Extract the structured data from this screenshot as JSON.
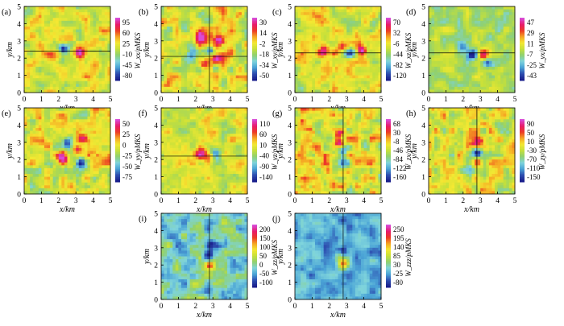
{
  "chart_data": [
    {
      "panel": "(a)",
      "type": "heatmap",
      "xlabel": "x/km",
      "ylabel": "y/km",
      "xlim": [
        0,
        5
      ],
      "ylim": [
        0,
        5
      ],
      "xticks": [
        "0",
        "1",
        "2",
        "3",
        "4",
        "5"
      ],
      "yticks": [
        "0",
        "1",
        "2",
        "3",
        "4",
        "5"
      ],
      "colorbar_ticks": [
        "95",
        "60",
        "25",
        "-10",
        "-45",
        "-80"
      ],
      "colorbar_label": "W_xx/pMKS",
      "crosshair": {
        "h": 2.4
      },
      "blobs": [
        {
          "x": 2.3,
          "y": 2.5,
          "v": -1
        },
        {
          "x": 3.2,
          "y": 2.3,
          "v": 1
        },
        {
          "x": 1.6,
          "y": 2.0,
          "v": 0.4
        },
        {
          "x": 4.2,
          "y": 2.4,
          "v": -0.3
        }
      ]
    },
    {
      "panel": "(b)",
      "type": "heatmap",
      "xlabel": "x/km",
      "ylabel": "y/km",
      "xlim": [
        0,
        5
      ],
      "ylim": [
        0,
        5
      ],
      "xticks": [
        "0",
        "1",
        "2",
        "3",
        "4",
        "5"
      ],
      "yticks": [
        "0",
        "1",
        "2",
        "3",
        "4",
        "5"
      ],
      "colorbar_ticks": [
        "30",
        "14",
        "-2",
        "-18",
        "-34",
        "-50"
      ],
      "colorbar_label": "W_xy/pMKS",
      "crosshair": {
        "h": 2.1,
        "v": 2.8
      },
      "blobs": [
        {
          "x": 2.3,
          "y": 3.2,
          "v": 1
        },
        {
          "x": 3.4,
          "y": 3.0,
          "v": 0.8
        },
        {
          "x": 2.8,
          "y": 2.4,
          "v": -1
        },
        {
          "x": 3.2,
          "y": 2.0,
          "v": 0.9
        },
        {
          "x": 1.8,
          "y": 2.2,
          "v": -0.5
        },
        {
          "x": 2.5,
          "y": 1.6,
          "v": 0.6
        }
      ]
    },
    {
      "panel": "(c)",
      "type": "heatmap",
      "xlabel": "x/km",
      "ylabel": "y/km",
      "xlim": [
        0,
        5
      ],
      "ylim": [
        0,
        5
      ],
      "xticks": [
        "0",
        "1",
        "2",
        "3",
        "4",
        "5"
      ],
      "yticks": [
        "0",
        "1",
        "2",
        "3",
        "4",
        "5"
      ],
      "colorbar_ticks": [
        "70",
        "32",
        "-6",
        "-44",
        "-82",
        "-120"
      ],
      "colorbar_label": "W_xz/pMKS",
      "crosshair": {
        "h": 2.3
      },
      "blobs": [
        {
          "x": 1.7,
          "y": 2.4,
          "v": 1
        },
        {
          "x": 2.3,
          "y": 2.3,
          "v": 0.7
        },
        {
          "x": 3.2,
          "y": 2.3,
          "v": -1
        },
        {
          "x": 3.9,
          "y": 2.4,
          "v": 1
        },
        {
          "x": 2.8,
          "y": 2.6,
          "v": 0.4
        }
      ]
    },
    {
      "panel": "(d)",
      "type": "heatmap",
      "xlabel": "x/km",
      "ylabel": "y/km",
      "xlim": [
        0,
        5
      ],
      "ylim": [
        0,
        5
      ],
      "xticks": [
        "0",
        "1",
        "2",
        "3",
        "4",
        "5"
      ],
      "yticks": [
        "0",
        "1",
        "2",
        "3",
        "4",
        "5"
      ],
      "colorbar_ticks": [
        "47",
        "29",
        "11",
        "-7",
        "-25",
        "-43"
      ],
      "colorbar_label": "W_yx/pMKS",
      "crosshair": {
        "h": 2.3
      },
      "blobs": [
        {
          "x": 2.5,
          "y": 2.2,
          "v": -1
        },
        {
          "x": 3.2,
          "y": 2.2,
          "v": 0.9
        },
        {
          "x": 3.5,
          "y": 1.7,
          "v": -0.8
        },
        {
          "x": 2.0,
          "y": 2.6,
          "v": -0.4
        }
      ]
    },
    {
      "panel": "(e)",
      "type": "heatmap",
      "xlabel": "x/km",
      "ylabel": "y/km",
      "xlim": [
        0,
        5
      ],
      "ylim": [
        0,
        5
      ],
      "xticks": [
        "0",
        "1",
        "2",
        "3",
        "4",
        "5"
      ],
      "yticks": [
        "0",
        "1",
        "2",
        "3",
        "4",
        "5"
      ],
      "colorbar_ticks": [
        "50",
        "25",
        "0",
        "-25",
        "-50",
        "-75"
      ],
      "colorbar_label": "W_yy/pMKS",
      "blobs": [
        {
          "x": 2.2,
          "y": 2.0,
          "v": 1
        },
        {
          "x": 3.1,
          "y": 2.6,
          "v": 0.9
        },
        {
          "x": 3.5,
          "y": 3.2,
          "v": 0.6
        },
        {
          "x": 2.5,
          "y": 2.9,
          "v": -0.8
        },
        {
          "x": 3.3,
          "y": 1.8,
          "v": -0.9
        }
      ]
    },
    {
      "panel": "(f)",
      "type": "heatmap",
      "xlabel": "x/km",
      "ylabel": "y/km",
      "xlim": [
        0,
        5
      ],
      "ylim": [
        0,
        5
      ],
      "xticks": [
        "0",
        "1",
        "2",
        "3",
        "4",
        "5"
      ],
      "yticks": [
        "0",
        "1",
        "2",
        "3",
        "4",
        "5"
      ],
      "colorbar_ticks": [
        "110",
        "60",
        "10",
        "-40",
        "-90",
        "-140"
      ],
      "colorbar_label": "W_yz/pMKS",
      "crosshair": {
        "h": 2.2
      },
      "blobs": [
        {
          "x": 2.3,
          "y": 2.3,
          "v": 1
        },
        {
          "x": 3.2,
          "y": 2.3,
          "v": -1
        },
        {
          "x": 2.8,
          "y": 2.1,
          "v": 0.3
        }
      ]
    },
    {
      "panel": "(g)",
      "type": "heatmap",
      "xlabel": "x/km",
      "ylabel": "y/km",
      "xlim": [
        0,
        5
      ],
      "ylim": [
        0,
        5
      ],
      "xticks": [
        "0",
        "1",
        "2",
        "3",
        "4",
        "5"
      ],
      "yticks": [
        "0",
        "1",
        "2",
        "3",
        "4",
        "5"
      ],
      "colorbar_ticks": [
        "68",
        "30",
        "-8",
        "-46",
        "-84",
        "-122",
        "-160"
      ],
      "colorbar_label": "W_zx/pMKS",
      "crosshair": {
        "v": 2.8
      },
      "blobs": [
        {
          "x": 2.6,
          "y": 3.0,
          "v": 1
        },
        {
          "x": 2.8,
          "y": 2.4,
          "v": -0.7
        },
        {
          "x": 2.8,
          "y": 1.8,
          "v": -1
        },
        {
          "x": 2.5,
          "y": 3.5,
          "v": 0.6
        },
        {
          "x": 2.8,
          "y": 1.2,
          "v": 0.4
        }
      ]
    },
    {
      "panel": "(h)",
      "type": "heatmap",
      "xlabel": "x/km",
      "ylabel": "y/km",
      "xlim": [
        0,
        5
      ],
      "ylim": [
        0,
        5
      ],
      "xticks": [
        "0",
        "1",
        "2",
        "3",
        "4",
        "5"
      ],
      "yticks": [
        "0",
        "1",
        "2",
        "3",
        "4",
        "5"
      ],
      "colorbar_ticks": [
        "90",
        "50",
        "10",
        "-30",
        "-70",
        "-110",
        "-150"
      ],
      "colorbar_label": "W_zy/pMKS",
      "crosshair": {
        "v": 2.8
      },
      "blobs": [
        {
          "x": 2.8,
          "y": 3.1,
          "v": 1
        },
        {
          "x": 2.8,
          "y": 2.4,
          "v": -1
        },
        {
          "x": 2.8,
          "y": 1.8,
          "v": 1
        },
        {
          "x": 2.6,
          "y": 1.4,
          "v": -0.4
        }
      ]
    },
    {
      "panel": "(i)",
      "type": "heatmap",
      "xlabel": "x/km",
      "ylabel": "y/km",
      "xlim": [
        0,
        5
      ],
      "ylim": [
        0,
        5
      ],
      "xticks": [
        "0",
        "1",
        "2",
        "3",
        "4",
        "5"
      ],
      "yticks": [
        "0",
        "1",
        "2",
        "3",
        "4",
        "5"
      ],
      "colorbar_ticks": [
        "200",
        "150",
        "100",
        "50",
        "0",
        "-50",
        "-100"
      ],
      "colorbar_label": "W_zz/pMKS",
      "crosshair": {
        "v": 2.8
      },
      "blobs": [
        {
          "x": 2.8,
          "y": 2.0,
          "v": 1
        },
        {
          "x": 2.7,
          "y": 2.6,
          "v": -0.6
        },
        {
          "x": 3.0,
          "y": 3.2,
          "v": -0.4
        }
      ]
    },
    {
      "panel": "(j)",
      "type": "heatmap",
      "xlabel": "x/km",
      "ylabel": "y/km",
      "xlim": [
        0,
        5
      ],
      "ylim": [
        0,
        5
      ],
      "xticks": [
        "0",
        "1",
        "2",
        "3",
        "4",
        "5"
      ],
      "yticks": [
        "0",
        "1",
        "2",
        "3",
        "4",
        "5"
      ],
      "colorbar_ticks": [
        "250",
        "195",
        "140",
        "85",
        "30",
        "-25",
        "-80"
      ],
      "colorbar_label": "W_zzz/pMKS",
      "crosshair": {
        "v": 2.8
      },
      "blobs": [
        {
          "x": 2.8,
          "y": 2.1,
          "v": 1
        },
        {
          "x": 2.6,
          "y": 2.5,
          "v": 0.5
        },
        {
          "x": 2.8,
          "y": 2.8,
          "v": -0.3
        }
      ]
    }
  ],
  "colors": {
    "scale": [
      "#1a1f8c",
      "#2e4fb0",
      "#4aa3d6",
      "#7fd4dc",
      "#8fd070",
      "#c6e03a",
      "#f4e832",
      "#f5a623",
      "#ec3a25",
      "#e81c6b",
      "#d84bd6"
    ]
  }
}
